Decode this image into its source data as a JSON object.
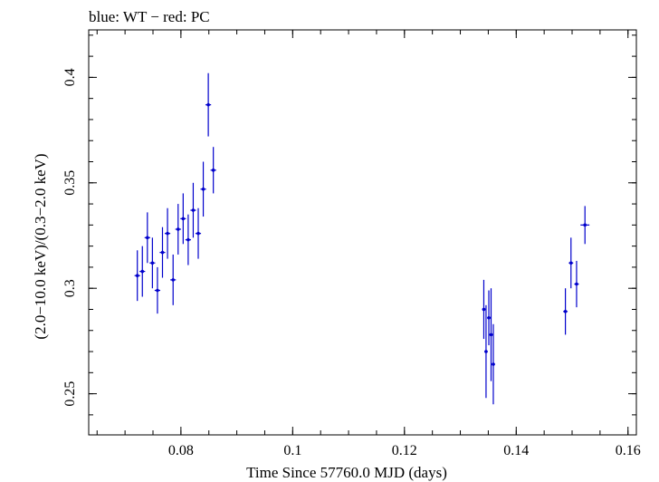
{
  "chart_data": {
    "type": "scatter",
    "title": "blue: WT − red: PC",
    "xlabel": "Time Since 57760.0 MJD (days)",
    "ylabel": "(2.0−10.0 keV)/(0.3−2.0 keV)",
    "xlim": [
      0.0635,
      0.1615
    ],
    "ylim": [
      0.2305,
      0.4225
    ],
    "x_ticks": [
      {
        "value": 0.08,
        "label": "0.08"
      },
      {
        "value": 0.1,
        "label": "0.1"
      },
      {
        "value": 0.12,
        "label": "0.12"
      },
      {
        "value": 0.14,
        "label": "0.14"
      },
      {
        "value": 0.16,
        "label": "0.16"
      }
    ],
    "y_ticks": [
      {
        "value": 0.25,
        "label": "0.25"
      },
      {
        "value": 0.3,
        "label": "0.3"
      },
      {
        "value": 0.35,
        "label": "0.35"
      },
      {
        "value": 0.4,
        "label": "0.4"
      }
    ],
    "x_minor_step": 0.005,
    "y_minor_step": 0.01,
    "grid": false,
    "series": [
      {
        "color": "#0000cc",
        "points": [
          {
            "x": 0.0722,
            "y": 0.306,
            "yerr": 0.012,
            "xerr": 0.0005
          },
          {
            "x": 0.0731,
            "y": 0.308,
            "yerr": 0.012,
            "xerr": 0.0005
          },
          {
            "x": 0.074,
            "y": 0.324,
            "yerr": 0.012,
            "xerr": 0.0005
          },
          {
            "x": 0.0749,
            "y": 0.312,
            "yerr": 0.012,
            "xerr": 0.0005
          },
          {
            "x": 0.0758,
            "y": 0.299,
            "yerr": 0.011,
            "xerr": 0.0005
          },
          {
            "x": 0.0767,
            "y": 0.317,
            "yerr": 0.012,
            "xerr": 0.0005
          },
          {
            "x": 0.0776,
            "y": 0.326,
            "yerr": 0.012,
            "xerr": 0.0005
          },
          {
            "x": 0.0786,
            "y": 0.304,
            "yerr": 0.012,
            "xerr": 0.0005
          },
          {
            "x": 0.0795,
            "y": 0.328,
            "yerr": 0.012,
            "xerr": 0.0005
          },
          {
            "x": 0.0804,
            "y": 0.333,
            "yerr": 0.012,
            "xerr": 0.0005
          },
          {
            "x": 0.0813,
            "y": 0.323,
            "yerr": 0.012,
            "xerr": 0.0005
          },
          {
            "x": 0.0822,
            "y": 0.337,
            "yerr": 0.013,
            "xerr": 0.0005
          },
          {
            "x": 0.0831,
            "y": 0.326,
            "yerr": 0.012,
            "xerr": 0.0005
          },
          {
            "x": 0.084,
            "y": 0.347,
            "yerr": 0.013,
            "xerr": 0.0005
          },
          {
            "x": 0.0849,
            "y": 0.387,
            "yerr": 0.015,
            "xerr": 0.0005
          },
          {
            "x": 0.0858,
            "y": 0.356,
            "yerr": 0.011,
            "xerr": 0.0005
          },
          {
            "x": 0.1342,
            "y": 0.29,
            "yerr": 0.014,
            "xerr": 0.0003
          },
          {
            "x": 0.1346,
            "y": 0.27,
            "yerr": 0.022,
            "xerr": 0.0003
          },
          {
            "x": 0.1351,
            "y": 0.286,
            "yerr": 0.013,
            "xerr": 0.0003
          },
          {
            "x": 0.1355,
            "y": 0.278,
            "yerr": 0.022,
            "xerr": 0.0003
          },
          {
            "x": 0.1359,
            "y": 0.264,
            "yerr": 0.019,
            "xerr": 0.0003
          },
          {
            "x": 0.1488,
            "y": 0.289,
            "yerr": 0.011,
            "xerr": 0.0004
          },
          {
            "x": 0.1498,
            "y": 0.312,
            "yerr": 0.012,
            "xerr": 0.0004
          },
          {
            "x": 0.1508,
            "y": 0.302,
            "yerr": 0.011,
            "xerr": 0.0004
          },
          {
            "x": 0.1523,
            "y": 0.33,
            "yerr": 0.009,
            "xerr": 0.0008
          }
        ]
      }
    ]
  }
}
